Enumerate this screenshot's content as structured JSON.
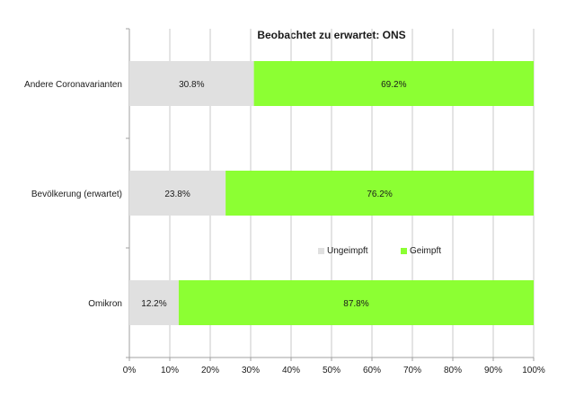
{
  "chart_data": {
    "type": "bar",
    "orientation": "horizontal",
    "stacked": true,
    "title": "Beobachtet zu erwartet: ONS",
    "categories": [
      "Andere Coronavarianten",
      "Bevölkerung (erwartet)",
      "Omikron"
    ],
    "series": [
      {
        "name": "Ungeimpft",
        "values": [
          30.8,
          23.8,
          12.2
        ],
        "labels": [
          "30.8%",
          "23.8%",
          "12.2%"
        ],
        "color": "#e0e0e0"
      },
      {
        "name": "Geimpft",
        "values": [
          69.2,
          76.2,
          87.8
        ],
        "labels": [
          "69.2%",
          "76.2%",
          "87.8%"
        ],
        "color": "#8cff33"
      }
    ],
    "xlim": [
      0,
      100
    ],
    "xticks": [
      "0%",
      "10%",
      "20%",
      "30%",
      "40%",
      "50%",
      "60%",
      "70%",
      "80%",
      "90%",
      "100%"
    ],
    "grid": true,
    "legend_position": "inside-lower-right"
  }
}
